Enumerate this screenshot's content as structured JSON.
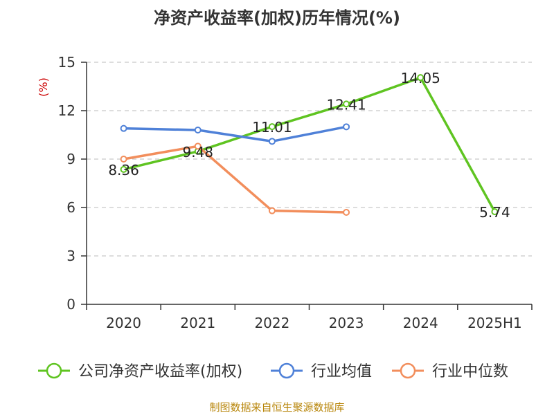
{
  "chart_data": {
    "type": "line",
    "title": "净资产收益率(加权)历年情况(%)",
    "unit_label": "(%)",
    "categories": [
      "2020",
      "2021",
      "2022",
      "2023",
      "2024",
      "2025H1"
    ],
    "ylim": [
      0,
      15
    ],
    "yticks": [
      0,
      3,
      6,
      9,
      12,
      15
    ],
    "grid": true,
    "legend_position": "bottom",
    "series": [
      {
        "name": "公司净资产收益率(加权)",
        "color": "#5fc421",
        "values": [
          8.36,
          9.48,
          11.01,
          12.41,
          14.05,
          5.74
        ],
        "labels": [
          "8.36",
          "9.48",
          "11.01",
          "12.41",
          "14.05",
          "5.74"
        ]
      },
      {
        "name": "行业均值",
        "color": "#4f81d8",
        "values": [
          10.9,
          10.8,
          10.1,
          11.0,
          null,
          null
        ],
        "labels": []
      },
      {
        "name": "行业中位数",
        "color": "#f28e5c",
        "values": [
          9.0,
          9.8,
          5.8,
          5.7,
          null,
          null
        ],
        "labels": []
      }
    ]
  },
  "colors": {
    "axis": "#333333",
    "grid": "#bbbbbb",
    "unit": "#cc0000",
    "source": "#b8860b"
  },
  "source_note": "制图数据来自恒生聚源数据库"
}
